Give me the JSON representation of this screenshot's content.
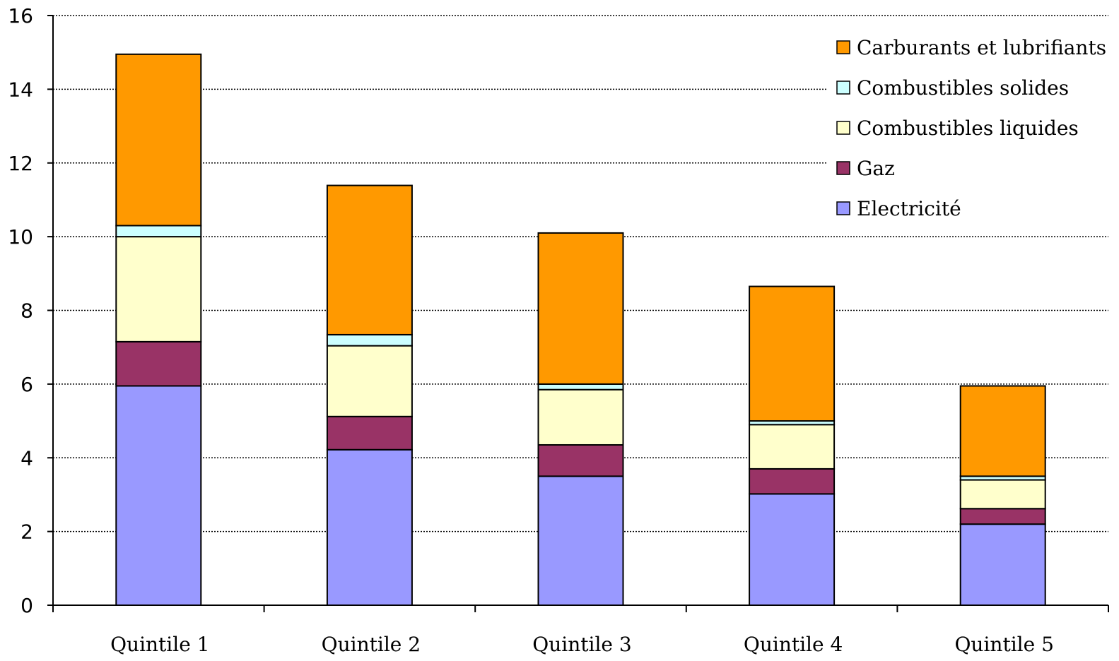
{
  "chart_data": {
    "type": "bar",
    "stacked": true,
    "categories": [
      "Quintile 1",
      "Quintile 2",
      "Quintile 3",
      "Quintile 4",
      "Quintile 5"
    ],
    "series": [
      {
        "name": "Electricité",
        "color": "#9999FF",
        "values": [
          5.95,
          4.22,
          3.5,
          3.02,
          2.2
        ]
      },
      {
        "name": "Gaz",
        "color": "#993366",
        "values": [
          1.2,
          0.9,
          0.85,
          0.68,
          0.42
        ]
      },
      {
        "name": "Combustibles liquides",
        "color": "#FFFFCC",
        "values": [
          2.85,
          1.92,
          1.5,
          1.2,
          0.78
        ]
      },
      {
        "name": "Combustibles solides",
        "color": "#CCFFFF",
        "values": [
          0.3,
          0.3,
          0.15,
          0.1,
          0.1
        ]
      },
      {
        "name": "Carburants et lubrifiants",
        "color": "#FF9900",
        "values": [
          4.65,
          4.05,
          4.1,
          3.65,
          2.45
        ]
      }
    ],
    "ylim": [
      0,
      16
    ],
    "yticks": [
      "0",
      "2",
      "4",
      "6",
      "8",
      "10",
      "12",
      "14",
      "16"
    ],
    "grid": true,
    "legend_position": "top-right",
    "legend_order": [
      "Carburants et lubrifiants",
      "Combustibles solides",
      "Combustibles liquides",
      "Gaz",
      "Electricité"
    ],
    "title": "",
    "xlabel": "",
    "ylabel": ""
  }
}
